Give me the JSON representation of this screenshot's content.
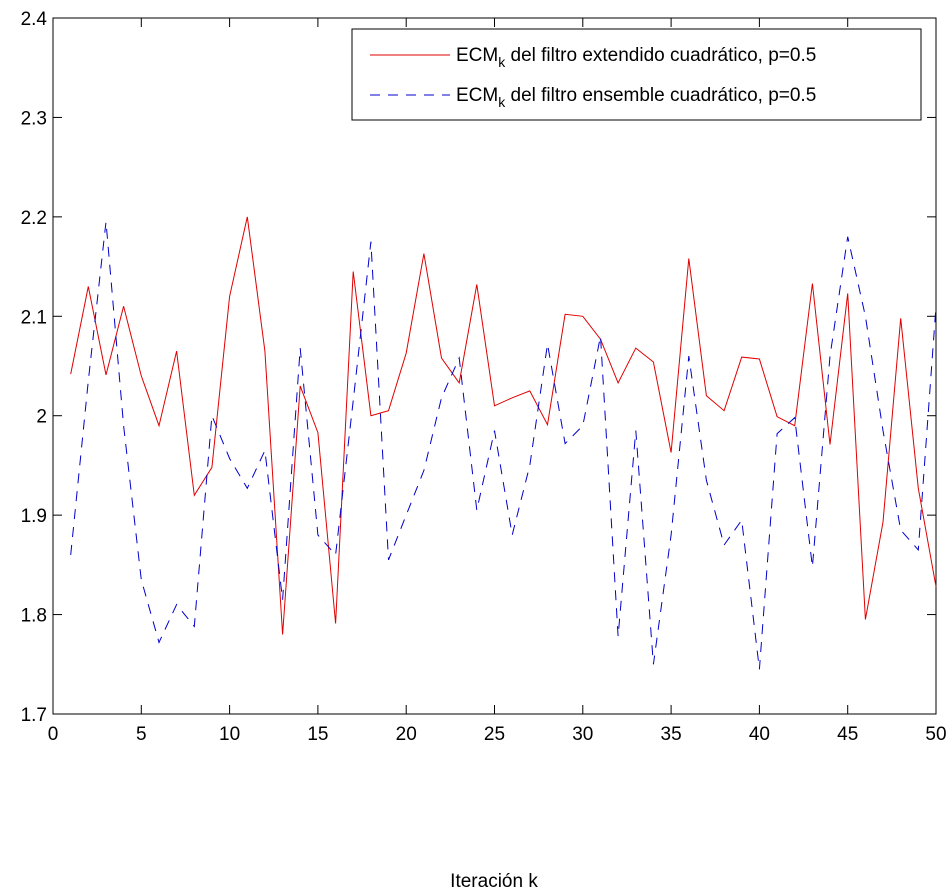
{
  "chart_data": {
    "type": "line",
    "xlabel": "Iteración k",
    "ylabel": "",
    "xlim": [
      0,
      50
    ],
    "ylim": [
      1.7,
      2.4
    ],
    "xticks": [
      0,
      5,
      10,
      15,
      20,
      25,
      30,
      35,
      40,
      45,
      50
    ],
    "yticks": [
      1.7,
      1.8,
      1.9,
      2.0,
      2.1,
      2.2,
      2.3,
      2.4
    ],
    "xtick_labels": [
      "0",
      "5",
      "10",
      "15",
      "20",
      "25",
      "30",
      "35",
      "40",
      "45",
      "50"
    ],
    "ytick_labels": [
      "1.7",
      "1.8",
      "1.9",
      "2",
      "2.1",
      "2.2",
      "2.3",
      "2.4"
    ],
    "grid": false,
    "legend_position": "top-right",
    "x": [
      1,
      2,
      3,
      4,
      5,
      6,
      7,
      8,
      9,
      10,
      11,
      12,
      13,
      14,
      15,
      16,
      17,
      18,
      19,
      20,
      21,
      22,
      23,
      24,
      25,
      26,
      27,
      28,
      29,
      30,
      31,
      32,
      33,
      34,
      35,
      36,
      37,
      38,
      39,
      40,
      41,
      42,
      43,
      44,
      45,
      46,
      47,
      48,
      49,
      50
    ],
    "series": [
      {
        "name_prefix": "ECM",
        "name_sub": "k",
        "name_suffix": " del filtro extendido cuadrático, p=0.5",
        "color": "#e00000",
        "style": "solid",
        "values": [
          2.042,
          2.13,
          2.041,
          2.11,
          2.04,
          1.99,
          2.065,
          1.92,
          1.948,
          2.12,
          2.2,
          2.065,
          1.78,
          2.03,
          1.983,
          1.791,
          2.145,
          2.0,
          2.005,
          2.063,
          2.163,
          2.058,
          2.033,
          2.132,
          2.01,
          2.018,
          2.025,
          1.991,
          2.102,
          2.1,
          2.077,
          2.033,
          2.068,
          2.054,
          1.963,
          2.158,
          2.02,
          2.005,
          2.059,
          2.057,
          1.999,
          1.99,
          2.133,
          1.971,
          2.123,
          1.795,
          1.893,
          2.098,
          1.927,
          1.828
        ]
      },
      {
        "name_prefix": "ECM",
        "name_sub": "k",
        "name_suffix": " del filtro ensemble cuadrático, p=0.5",
        "color": "#0000cc",
        "style": "dashed",
        "values": [
          1.86,
          2.035,
          2.195,
          1.99,
          1.835,
          1.772,
          1.81,
          1.788,
          2.0,
          1.957,
          1.927,
          1.965,
          1.815,
          2.068,
          1.88,
          1.86,
          2.015,
          2.175,
          1.855,
          1.9,
          1.945,
          2.018,
          2.058,
          1.905,
          1.985,
          1.88,
          1.95,
          2.072,
          1.972,
          1.99,
          2.08,
          1.778,
          1.985,
          1.75,
          1.88,
          2.06,
          1.935,
          1.87,
          1.895,
          1.745,
          1.982,
          1.998,
          1.848,
          2.06,
          2.18,
          2.1,
          1.985,
          1.885,
          1.865,
          2.11
        ]
      }
    ]
  }
}
